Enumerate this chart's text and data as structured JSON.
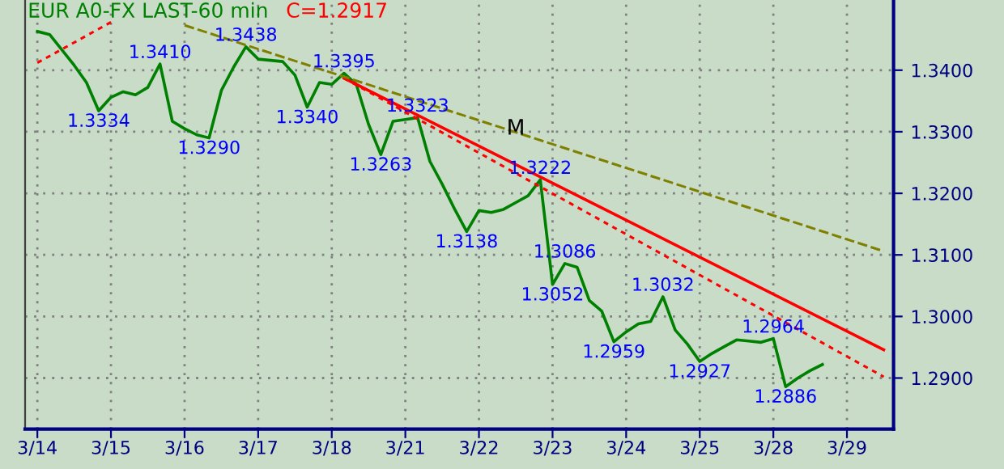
{
  "chart_data": {
    "type": "line",
    "title": "EUR A0-FX LAST-60 min",
    "subtitle": "C=1.2917",
    "categories": [
      "3/14",
      null,
      null,
      null,
      null,
      null,
      "3/15",
      null,
      null,
      null,
      null,
      null,
      "3/16",
      null,
      null,
      null,
      null,
      null,
      "3/17",
      null,
      null,
      null,
      null,
      null,
      "3/18",
      null,
      null,
      null,
      null,
      null,
      "3/21",
      null,
      null,
      null,
      null,
      null,
      "3/22",
      null,
      null,
      null,
      null,
      null,
      "3/23",
      null,
      null,
      null,
      null,
      null,
      "3/24",
      null,
      null,
      null,
      null,
      null,
      "3/25",
      null,
      null,
      null,
      null,
      null,
      "3/28",
      null,
      null,
      null,
      null,
      null,
      "3/29",
      null,
      null,
      null
    ],
    "ylim": [
      1.2817,
      1.3514
    ],
    "yticks": [
      {
        "value": 1.29,
        "label": "1.2900"
      },
      {
        "value": 1.3,
        "label": "1.3000"
      },
      {
        "value": 1.31,
        "label": "1.3100"
      },
      {
        "value": 1.32,
        "label": "1.3200"
      },
      {
        "value": 1.33,
        "label": "1.3300"
      },
      {
        "value": 1.34,
        "label": "1.3400"
      }
    ],
    "grid": true,
    "series": [
      {
        "color": "#008000",
        "line_style": "solid",
        "values": [
          1.3463,
          1.3458,
          1.3433,
          1.3408,
          1.338,
          1.3334,
          1.3356,
          1.3365,
          1.336,
          1.3372,
          1.341,
          1.3317,
          1.3305,
          1.3295,
          1.329,
          1.3367,
          1.3405,
          1.3438,
          1.3418,
          1.3416,
          1.3414,
          1.3392,
          1.334,
          1.338,
          1.3377,
          1.3395,
          1.3377,
          1.3312,
          1.3263,
          1.3317,
          1.332,
          1.3323,
          1.3252,
          1.3215,
          1.3175,
          1.3138,
          1.3172,
          1.3169,
          1.3174,
          1.3185,
          1.3196,
          1.3222,
          1.3052,
          1.3086,
          1.308,
          1.3026,
          1.3009,
          1.2959,
          1.2975,
          1.2988,
          1.2992,
          1.3032,
          1.2978,
          1.2955,
          1.2927,
          1.294,
          1.2951,
          1.2962,
          1.296,
          1.2958,
          1.2964,
          1.2886,
          1.29,
          1.2912,
          1.2922,
          null,
          null,
          null,
          null,
          null
        ]
      },
      {
        "color": "#ff0000",
        "line_style": "solid",
        "values": [
          null,
          null,
          null,
          null,
          null,
          null,
          null,
          null,
          null,
          null,
          null,
          null,
          null,
          null,
          null,
          null,
          null,
          null,
          null,
          null,
          null,
          null,
          null,
          null,
          null,
          1.3387,
          null,
          null,
          null,
          null,
          null,
          null,
          null,
          null,
          null,
          null,
          null,
          null,
          null,
          null,
          null,
          null,
          null,
          null,
          null,
          null,
          null,
          null,
          null,
          null,
          null,
          null,
          null,
          null,
          null,
          null,
          null,
          null,
          null,
          null,
          null,
          null,
          null,
          null,
          null,
          null,
          null,
          null,
          null,
          1.2946
        ]
      },
      {
        "color": "#ff0000",
        "line_style": "dotted",
        "values": [
          null,
          null,
          null,
          null,
          null,
          null,
          null,
          null,
          null,
          null,
          null,
          null,
          null,
          null,
          null,
          null,
          null,
          null,
          null,
          null,
          null,
          null,
          null,
          null,
          null,
          1.3387,
          null,
          null,
          null,
          null,
          null,
          null,
          null,
          null,
          null,
          null,
          null,
          null,
          null,
          null,
          null,
          null,
          null,
          null,
          null,
          null,
          null,
          null,
          null,
          null,
          null,
          null,
          null,
          null,
          null,
          null,
          null,
          null,
          null,
          null,
          null,
          null,
          null,
          null,
          null,
          null,
          null,
          null,
          null,
          1.2902
        ]
      },
      {
        "color": "#808000",
        "line_style": "dashed",
        "values": [
          null,
          null,
          null,
          null,
          null,
          null,
          null,
          null,
          null,
          null,
          null,
          null,
          1.3473,
          null,
          null,
          null,
          null,
          null,
          null,
          null,
          null,
          null,
          null,
          null,
          null,
          null,
          null,
          null,
          null,
          null,
          null,
          null,
          null,
          null,
          null,
          null,
          null,
          null,
          null,
          null,
          null,
          null,
          null,
          null,
          null,
          null,
          null,
          null,
          null,
          null,
          null,
          null,
          null,
          null,
          null,
          null,
          null,
          null,
          null,
          null,
          null,
          null,
          null,
          null,
          null,
          null,
          null,
          null,
          null,
          1.3106
        ]
      },
      {
        "color": "#ff0000",
        "line_style": "dotted",
        "values": [
          1.3412,
          null,
          null,
          null,
          null,
          null,
          1.3478,
          null,
          null,
          null,
          null,
          null,
          null,
          null,
          null,
          null,
          null,
          null,
          null,
          null,
          null,
          null,
          null,
          null,
          null,
          null,
          null,
          null,
          null,
          null,
          null,
          null,
          null,
          null,
          null,
          null,
          null,
          null,
          null,
          null,
          null,
          null,
          null,
          null,
          null,
          null,
          null,
          null,
          null,
          null,
          null,
          null,
          null,
          null,
          null,
          null,
          null,
          null,
          null,
          null,
          null,
          null,
          null,
          null,
          null,
          null,
          null,
          null,
          null,
          null
        ]
      }
    ],
    "annotations": [
      {
        "text": "1.3334",
        "y": 1.3334
      },
      {
        "text": "1.3410",
        "y": 1.341
      },
      {
        "text": "1.3290",
        "y": 1.329
      },
      {
        "text": "1.3438",
        "y": 1.3438
      },
      {
        "text": "1.3340",
        "y": 1.334
      },
      {
        "text": "1.3395",
        "y": 1.3395
      },
      {
        "text": "1.3263",
        "y": 1.3263
      },
      {
        "text": "1.3323",
        "y": 1.3323
      },
      {
        "text": "1.3138",
        "y": 1.3138
      },
      {
        "text": "1.3222",
        "y": 1.3222
      },
      {
        "text": "1.3052",
        "y": 1.3052
      },
      {
        "text": "1.3086",
        "y": 1.3086
      },
      {
        "text": "1.2959",
        "y": 1.2959
      },
      {
        "text": "1.3032",
        "y": 1.3032
      },
      {
        "text": "1.2927",
        "y": 1.2927
      },
      {
        "text": "1.2964",
        "y": 1.2964
      },
      {
        "text": "1.2886",
        "y": 1.2886
      },
      "M"
    ]
  }
}
